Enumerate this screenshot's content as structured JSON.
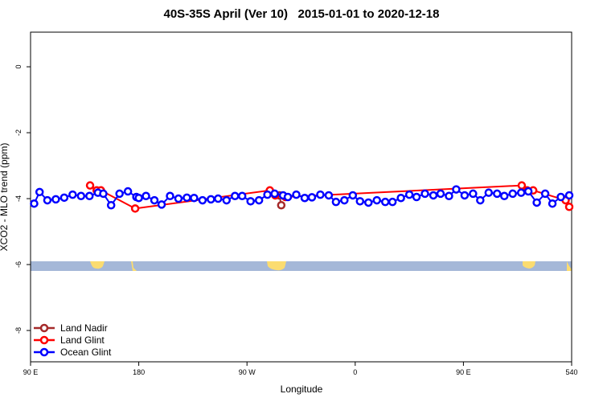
{
  "chart_data": {
    "type": "scatter",
    "title": "40S-35S April (Ver 10)   2015-01-01 to 2020-12-18",
    "x_label": "Longitude",
    "y_label": "XCO2 - MLO trend (ppm)",
    "xlim": [
      90,
      540
    ],
    "ylim": [
      -8.95,
      1.05
    ],
    "xticks": [
      {
        "value": 90,
        "label": "90 E"
      },
      180,
      {
        "value": 270,
        "label": "90 W"
      },
      {
        "value": 360,
        "label": "0"
      },
      {
        "value": 450,
        "label": "90 E"
      },
      540
    ],
    "yticks": [
      0,
      -2,
      -4,
      -6,
      -8
    ],
    "legend": "bottom-left",
    "series": [
      {
        "name": "Land Nadir",
        "color": "#a52a2a",
        "x": [
          297,
          298.5
        ],
        "values": [
          -3.9,
          -4.2
        ]
      },
      {
        "name": "Land Glint",
        "color": "#ff0000",
        "x": [
          139.5,
          145,
          148.5,
          177,
          289,
          293.5,
          302,
          498.5,
          503,
          508,
          535,
          538
        ],
        "values": [
          -3.6,
          -3.75,
          -3.75,
          -4.3,
          -3.75,
          -3.9,
          -3.95,
          -3.6,
          -3.75,
          -3.75,
          -4.05,
          -4.25
        ]
      },
      {
        "name": "Ocean Glint",
        "color": "#0000ff",
        "x": [
          93,
          97.5,
          104,
          111,
          118,
          125,
          132,
          139,
          146,
          150.5,
          157,
          164,
          171,
          178,
          180,
          186,
          193,
          199,
          206,
          213,
          220,
          226,
          233,
          240,
          246,
          253,
          260,
          266,
          273,
          280,
          287,
          293,
          300,
          304,
          311,
          318,
          324,
          331,
          338,
          344,
          351,
          358,
          364,
          371,
          378,
          385,
          391,
          398,
          405,
          411,
          418,
          425,
          431,
          438,
          444,
          451,
          458,
          464,
          471,
          478,
          484,
          491,
          498,
          504,
          511,
          518,
          524,
          531,
          538
        ],
        "values": [
          -4.15,
          -3.8,
          -4.05,
          -4.02,
          -3.97,
          -3.88,
          -3.92,
          -3.92,
          -3.82,
          -3.85,
          -4.2,
          -3.85,
          -3.78,
          -3.95,
          -3.98,
          -3.92,
          -4.05,
          -4.18,
          -3.92,
          -4.0,
          -3.97,
          -3.98,
          -4.05,
          -4.02,
          -4.0,
          -4.05,
          -3.92,
          -3.92,
          -4.08,
          -4.05,
          -3.88,
          -3.85,
          -3.9,
          -3.95,
          -3.88,
          -3.98,
          -3.96,
          -3.88,
          -3.9,
          -4.1,
          -4.05,
          -3.9,
          -4.08,
          -4.12,
          -4.05,
          -4.1,
          -4.1,
          -3.98,
          -3.88,
          -3.95,
          -3.85,
          -3.9,
          -3.85,
          -3.92,
          -3.72,
          -3.9,
          -3.85,
          -4.05,
          -3.82,
          -3.85,
          -3.92,
          -3.85,
          -3.82,
          -3.78,
          -4.12,
          -3.85,
          -4.15,
          -3.95,
          -3.9
        ]
      }
    ]
  }
}
